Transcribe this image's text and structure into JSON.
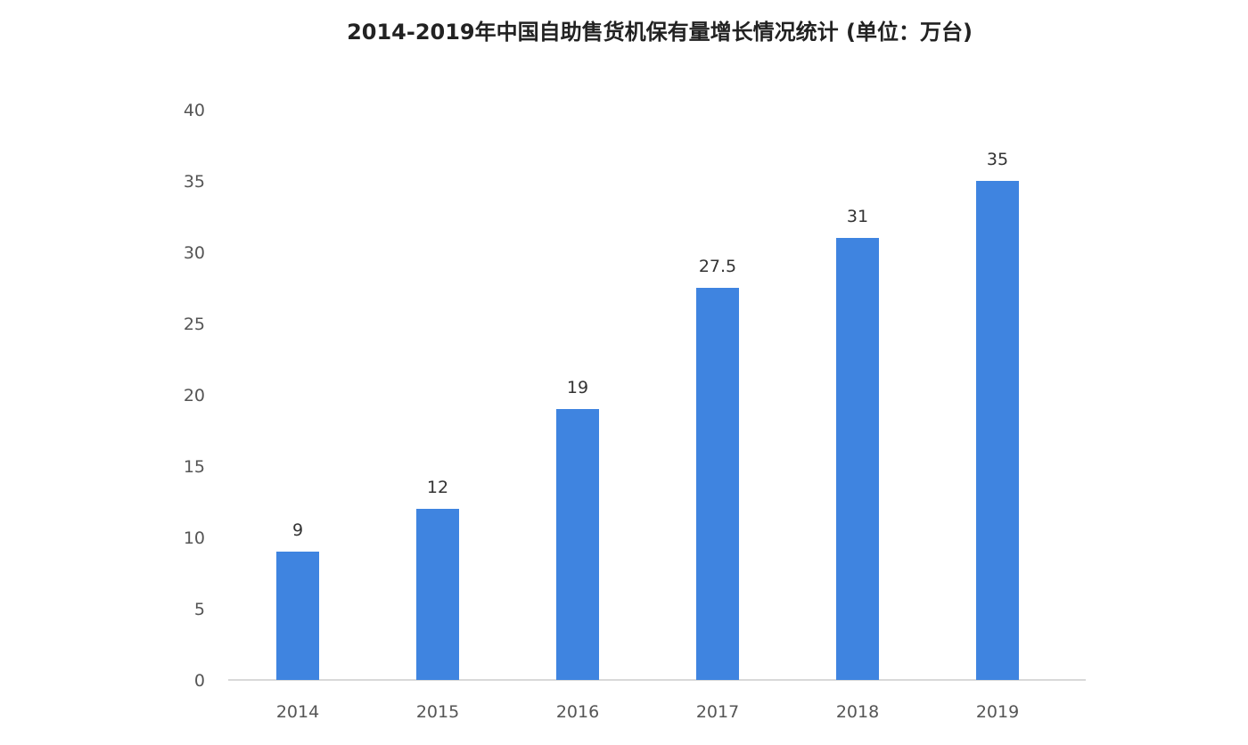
{
  "chart_data": {
    "type": "bar",
    "title": "2014-2019年中国自助售货机保有量增长情况统计 (单位：万台)",
    "categories": [
      "2014",
      "2015",
      "2016",
      "2017",
      "2018",
      "2019"
    ],
    "values": [
      9,
      12,
      19,
      27.5,
      31,
      35
    ],
    "data_labels": [
      "9",
      "12",
      "19",
      "27.5",
      "31",
      "35"
    ],
    "xlabel": "",
    "ylabel": "",
    "ylim": [
      0,
      40
    ],
    "yticks": [
      "0",
      "5",
      "10",
      "15",
      "20",
      "25",
      "30",
      "35",
      "40"
    ],
    "grid": false,
    "legend": "none",
    "bar_color": "#3f84e0"
  }
}
